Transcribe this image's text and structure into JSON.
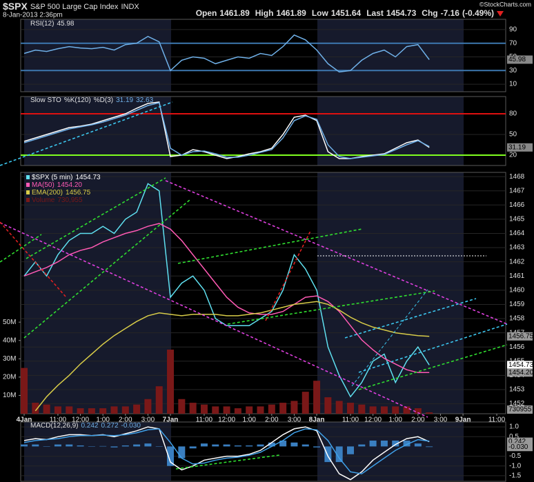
{
  "header": {
    "symbol": "$SPX",
    "name": "S&P 500 Large Cap Index",
    "exchange": "INDX",
    "datetime": "8-Jan-2013 2:36pm",
    "copyright": "©StockCharts.com",
    "quote": {
      "open_label": "Open",
      "open": 1461.89,
      "high_label": "High",
      "high": 1461.89,
      "low_label": "Low",
      "low": 1451.64,
      "last_label": "Last",
      "last": 1454.73,
      "chg_label": "Chg",
      "chg": -7.16,
      "chg_pct": "(-0.49%)"
    }
  },
  "chart_data": [
    {
      "type": "line",
      "title": "RSI(12)",
      "ylim": [
        0,
        100
      ],
      "yticks": [
        10,
        30,
        50,
        70,
        90
      ],
      "grid": true,
      "levels": [
        {
          "value": 70,
          "color": "#3d78b0"
        },
        {
          "value": 30,
          "color": "#3d78b0"
        }
      ],
      "series": [
        {
          "color": "#6fb0e8",
          "last": 45.98,
          "values": [
            55,
            60,
            58,
            62,
            65,
            63,
            62,
            64,
            60,
            68,
            70,
            80,
            72,
            30,
            45,
            50,
            48,
            40,
            45,
            50,
            48,
            55,
            52,
            65,
            82,
            75,
            60,
            40,
            28,
            30,
            45,
            55,
            60,
            50,
            65,
            68,
            45.98,
            null,
            null,
            null,
            null,
            null,
            null,
            null
          ]
        }
      ]
    },
    {
      "type": "line",
      "title": "Slow STO",
      "ylim": [
        5,
        105
      ],
      "yticks": [
        20,
        50,
        80
      ],
      "grid": true,
      "levels": [
        {
          "value": 80,
          "color": "#e01010"
        },
        {
          "value": 20,
          "color": "#80ff20"
        }
      ],
      "series": [
        {
          "name": "%K(120)",
          "color": "#ffffff",
          "last": 31.19,
          "values": [
            40,
            45,
            50,
            55,
            60,
            62,
            65,
            70,
            75,
            80,
            88,
            95,
            97,
            18,
            20,
            28,
            25,
            20,
            15,
            18,
            22,
            25,
            30,
            50,
            75,
            78,
            70,
            25,
            15,
            15,
            18,
            20,
            22,
            30,
            38,
            42,
            31.19,
            null,
            null,
            null,
            null,
            null,
            null,
            null
          ]
        },
        {
          "name": "%D(3)",
          "color": "#6fb0e8",
          "last": 32.63,
          "values": [
            38,
            43,
            48,
            53,
            58,
            61,
            64,
            68,
            73,
            78,
            85,
            92,
            96,
            30,
            20,
            25,
            26,
            22,
            17,
            17,
            20,
            24,
            28,
            45,
            70,
            77,
            72,
            35,
            18,
            15,
            17,
            19,
            21,
            28,
            35,
            41,
            32.63,
            null,
            null,
            null,
            null,
            null,
            null,
            null
          ]
        }
      ]
    },
    {
      "type": "line",
      "ylim": [
        1451.3,
        1468.2
      ],
      "yticks": [
        1452,
        1453,
        1454,
        1455,
        1456,
        1457,
        1458,
        1459,
        1460,
        1461,
        1462,
        1463,
        1464,
        1465,
        1466,
        1467,
        1468
      ],
      "y2lim": [
        0,
        131000000
      ],
      "y2ticks": [
        {
          "value": 10000000,
          "label": "10M"
        },
        {
          "value": 20000000,
          "label": "20M"
        },
        {
          "value": 30000000,
          "label": "30M"
        },
        {
          "value": 40000000,
          "label": "40M"
        },
        {
          "value": 50000000,
          "label": "50M"
        }
      ],
      "grid": true,
      "categories": [
        "4Jan",
        null,
        null,
        "11:00",
        null,
        "12:00",
        null,
        "1:00",
        null,
        "2:00",
        null,
        "3:00",
        null,
        "7Jan",
        null,
        null,
        "11:00",
        null,
        "12:00",
        null,
        "1:00",
        null,
        "2:00",
        null,
        "3:00",
        null,
        "8Jan",
        null,
        null,
        "11:00",
        null,
        "12:00",
        null,
        "1:00",
        null,
        "2:00",
        null,
        "3:00",
        null,
        "9Jan",
        null,
        null,
        "11:00",
        null
      ],
      "series": [
        {
          "name": "Volume",
          "type": "bar",
          "axis": "y2",
          "color": "#7a1818",
          "last": {
            "value": 730955,
            "label": "730,955"
          },
          "values": [
            25000000,
            6000000,
            5000000,
            4000000,
            4000000,
            3000000,
            3000000,
            3000000,
            4000000,
            4000000,
            5000000,
            8000000,
            15000000,
            35000000,
            8000000,
            6000000,
            5000000,
            4000000,
            4000000,
            3000000,
            4000000,
            4000000,
            5000000,
            6000000,
            7000000,
            12000000,
            18000000,
            9000000,
            7000000,
            6000000,
            5000000,
            4000000,
            4000000,
            4000000,
            4000000,
            3000000,
            730955,
            null,
            null,
            null,
            null,
            null,
            null,
            null
          ]
        },
        {
          "name": "$SPX (5 min)",
          "color": "#5fe0f0",
          "last": 1454.73,
          "values": [
            1461,
            1462,
            1461,
            1462.5,
            1463.5,
            1464,
            1464,
            1464.5,
            1464,
            1465,
            1465.5,
            1467.5,
            1467,
            1459.5,
            1460.5,
            1461,
            1460,
            1458,
            1457.5,
            1457.5,
            1457.5,
            1458,
            1458.5,
            1460,
            1462.5,
            1461.5,
            1460,
            1456,
            1454,
            1452.5,
            1453.5,
            1455,
            1455.5,
            1453.5,
            1455,
            1456,
            1454.73,
            null,
            null,
            null,
            null,
            null,
            null,
            null
          ]
        },
        {
          "name": "MA(50)",
          "color": "#ff5ab4",
          "last": {
            "value": 1454.2,
            "label": "1454.20"
          },
          "values": [
            1461,
            1461.3,
            1461.6,
            1462,
            1462.5,
            1462.8,
            1463,
            1463.4,
            1463.7,
            1464,
            1464.2,
            1464.5,
            1464.7,
            1464.3,
            1463.5,
            1462.5,
            1461.5,
            1460.5,
            1459.5,
            1458.8,
            1458.4,
            1458.3,
            1458.3,
            1458.5,
            1459,
            1459.5,
            1459.6,
            1459.2,
            1458.5,
            1457.5,
            1456.5,
            1455.8,
            1455.2,
            1454.8,
            1454.4,
            1454.2,
            1454.2,
            null,
            null,
            null,
            null,
            null,
            null,
            null
          ]
        },
        {
          "name": "EMA(200)",
          "color": "#d8cc48",
          "last": 1456.75,
          "values": [
            null,
            1451.5,
            1452.5,
            1453.3,
            1454,
            1454.8,
            1455.5,
            1456.2,
            1456.8,
            1457.3,
            1457.8,
            1458.2,
            1458.4,
            1458.3,
            1458.2,
            1458.3,
            1458.3,
            1458.3,
            1458.2,
            1458.2,
            1458.3,
            1458.4,
            1458.6,
            1458.8,
            1459,
            1459.1,
            1459.2,
            1459,
            1458.6,
            1458.1,
            1457.7,
            1457.4,
            1457.2,
            1457,
            1456.9,
            1456.8,
            1456.75,
            null,
            null,
            null,
            null,
            null,
            null,
            null
          ]
        }
      ]
    },
    {
      "type": "line",
      "title": "MACD(12,26,9)",
      "ylim": [
        -1.75,
        1.25
      ],
      "yticks": [
        {
          "value": 1,
          "label": "1.0"
        },
        0.5,
        -0.5,
        {
          "value": -1,
          "label": "-1.0"
        },
        -1.5
      ],
      "grid": true,
      "series": [
        {
          "type": "bar",
          "color": "#3a7fc0",
          "last": {
            "value": -0.03,
            "label": "-0.030"
          },
          "values": [
            0.1,
            0.1,
            0,
            0.1,
            0.1,
            0.05,
            0,
            0.02,
            -0.05,
            0.05,
            0.1,
            0.15,
            0,
            -1.0,
            -0.6,
            -0.1,
            0.15,
            0.1,
            0.1,
            0.05,
            0.05,
            0.1,
            0.2,
            0.3,
            0.2,
            0.1,
            -0.05,
            -0.8,
            -0.8,
            -0.4,
            0.1,
            0.3,
            0.3,
            0.3,
            0.3,
            0.15,
            -0.03,
            null,
            null,
            null,
            null,
            null,
            null,
            null
          ]
        },
        {
          "color": "#ffffff",
          "last": 0.242,
          "values": [
            0.3,
            0.4,
            0.35,
            0.5,
            0.6,
            0.6,
            0.55,
            0.6,
            0.5,
            0.65,
            0.8,
            1.0,
            0.9,
            -0.8,
            -1.2,
            -1.0,
            -0.7,
            -0.6,
            -0.5,
            -0.5,
            -0.4,
            -0.2,
            0.2,
            0.6,
            0.9,
            1.0,
            0.8,
            -0.5,
            -1.4,
            -1.7,
            -1.3,
            -0.7,
            -0.3,
            0.1,
            0.4,
            0.5,
            0.242,
            null,
            null,
            null,
            null,
            null,
            null,
            null
          ]
        },
        {
          "color": "#3fa0e8",
          "last": 0.272,
          "values": [
            0.2,
            0.3,
            0.35,
            0.4,
            0.5,
            0.55,
            0.55,
            0.58,
            0.55,
            0.6,
            0.7,
            0.85,
            0.9,
            0.2,
            -0.6,
            -0.9,
            -0.85,
            -0.7,
            -0.6,
            -0.55,
            -0.45,
            -0.3,
            0,
            0.3,
            0.7,
            0.9,
            0.85,
            0.3,
            -0.6,
            -1.3,
            -1.4,
            -1.0,
            -0.6,
            -0.2,
            0.1,
            0.35,
            0.272,
            null,
            null,
            null,
            null,
            null,
            null,
            null
          ]
        }
      ]
    }
  ]
}
